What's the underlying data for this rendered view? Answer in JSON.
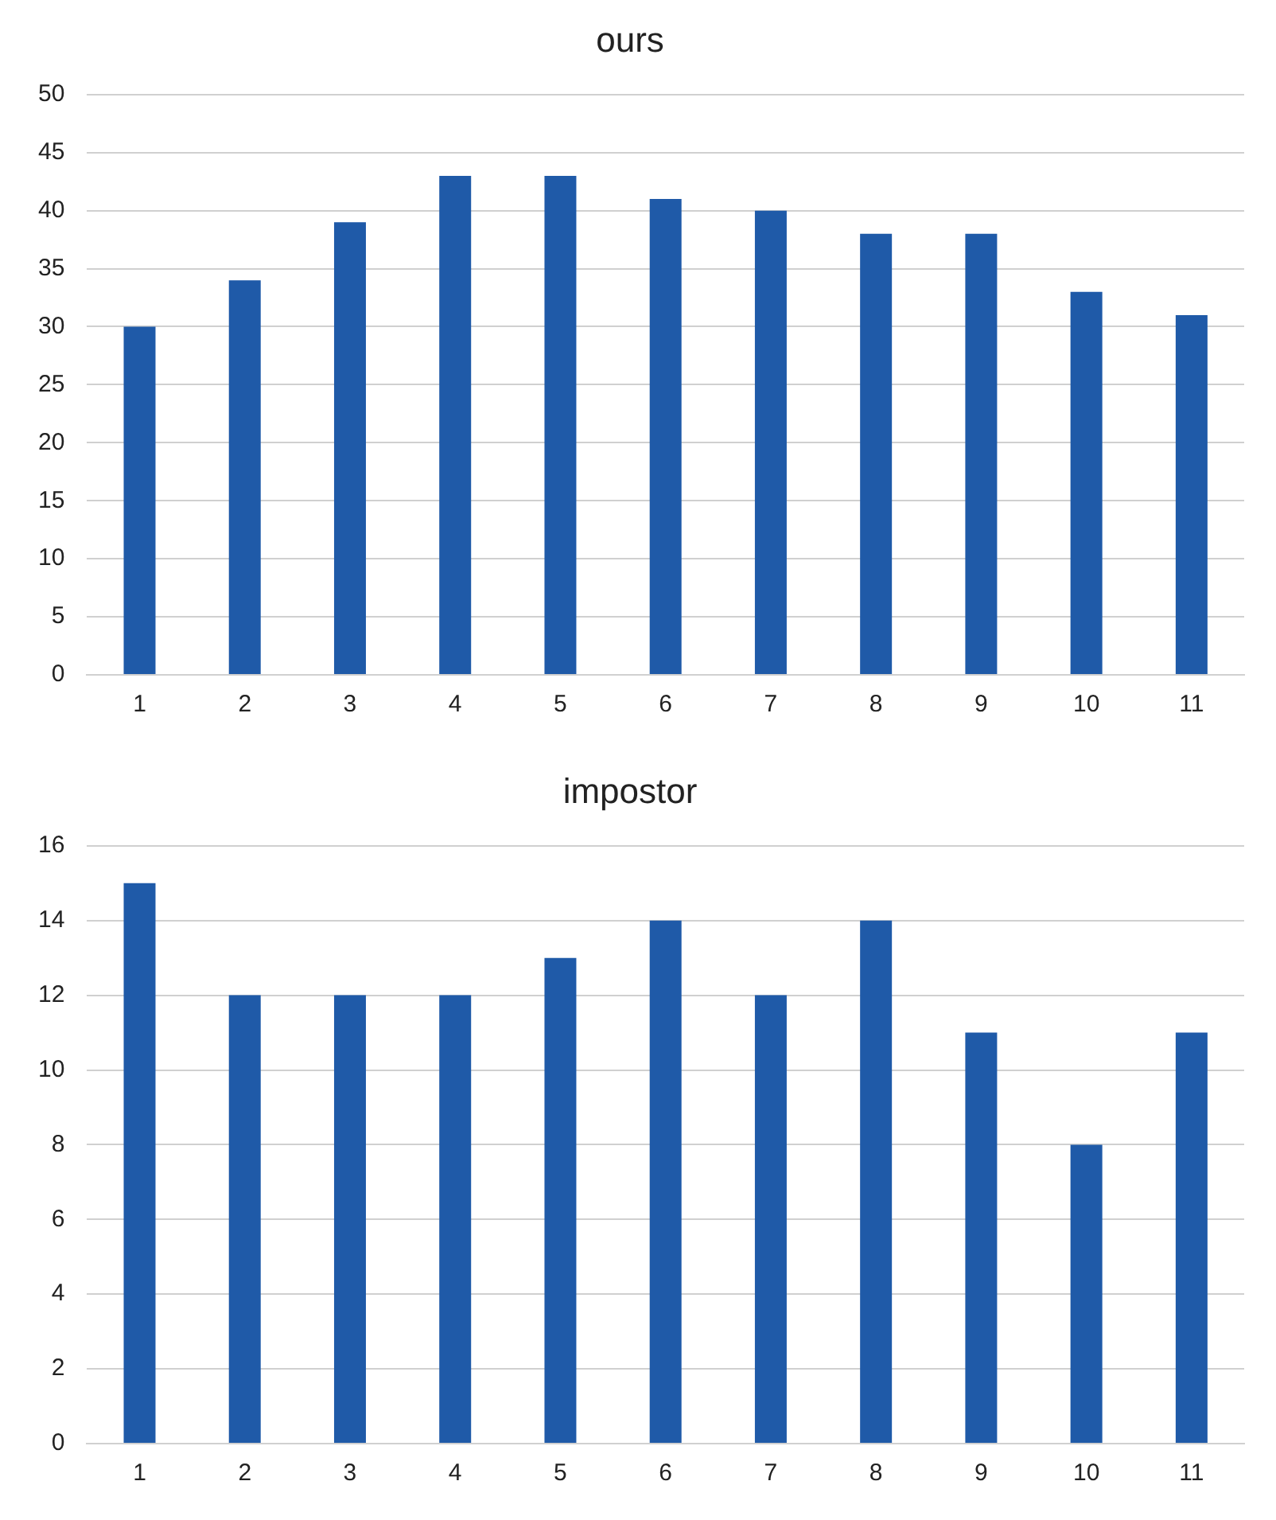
{
  "chart_data": [
    {
      "type": "bar",
      "title": "ours",
      "categories": [
        "1",
        "2",
        "3",
        "4",
        "5",
        "6",
        "7",
        "8",
        "9",
        "10",
        "11"
      ],
      "values": [
        30,
        34,
        39,
        43,
        43,
        41,
        40,
        38,
        38,
        33,
        31
      ],
      "color": "#1f5aa8",
      "ylim": [
        0,
        50
      ],
      "yticks": [
        0,
        5,
        10,
        15,
        20,
        25,
        30,
        35,
        40,
        45,
        50
      ],
      "grid": "y"
    },
    {
      "type": "bar",
      "title": "impostor",
      "categories": [
        "1",
        "2",
        "3",
        "4",
        "5",
        "6",
        "7",
        "8",
        "9",
        "10",
        "11"
      ],
      "values": [
        15,
        12,
        12,
        12,
        13,
        14,
        12,
        14,
        11,
        8,
        11
      ],
      "color": "#1f5aa8",
      "ylim": [
        0,
        16
      ],
      "yticks": [
        0,
        2,
        4,
        6,
        8,
        10,
        12,
        14,
        16
      ],
      "grid": "y"
    }
  ]
}
